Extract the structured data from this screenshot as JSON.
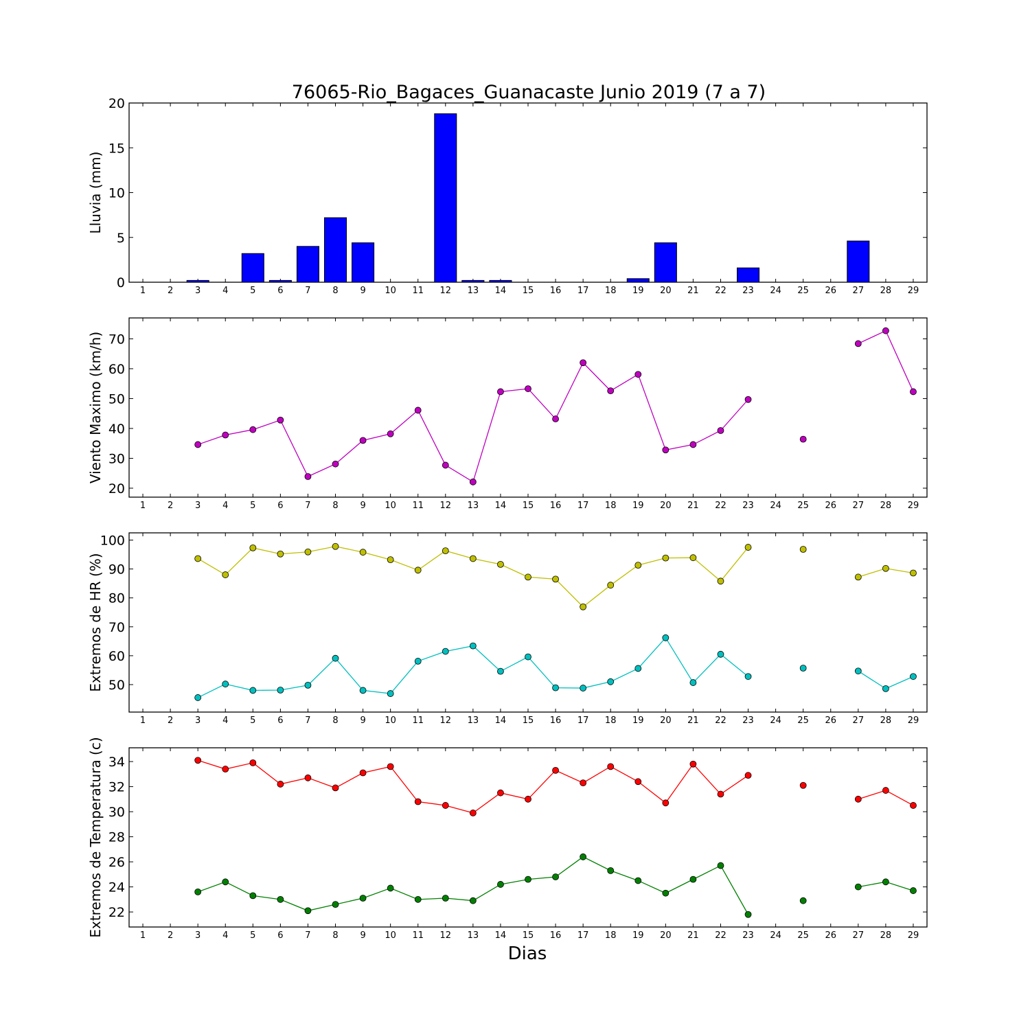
{
  "title": "76065-Rio_Bagaces_Guanacaste Junio 2019  (7 a 7)",
  "xlabel": "Dias",
  "chart_data": [
    {
      "type": "bar",
      "ylabel": "Lluvia (mm)",
      "ylim": [
        0,
        20
      ],
      "yticks": [
        0,
        5,
        10,
        15,
        20
      ],
      "x": [
        1,
        2,
        3,
        4,
        5,
        6,
        7,
        8,
        9,
        10,
        11,
        12,
        13,
        14,
        15,
        16,
        17,
        18,
        19,
        20,
        21,
        22,
        23,
        24,
        25,
        26,
        27,
        28,
        29
      ],
      "series": [
        {
          "color": "#0000ff",
          "values": [
            0,
            0,
            0.2,
            0,
            3.2,
            0.2,
            4.0,
            7.2,
            4.4,
            0,
            0,
            18.8,
            0.2,
            0.2,
            0,
            0,
            0,
            0,
            0.4,
            4.4,
            0,
            0,
            1.6,
            0,
            0,
            0,
            4.6,
            0,
            0
          ]
        }
      ]
    },
    {
      "type": "line",
      "ylabel": "Viento Maximo (km/h)",
      "ylim": [
        17,
        77
      ],
      "yticks": [
        20,
        30,
        40,
        50,
        60,
        70
      ],
      "x": [
        1,
        2,
        3,
        4,
        5,
        6,
        7,
        8,
        9,
        10,
        11,
        12,
        13,
        14,
        15,
        16,
        17,
        18,
        19,
        20,
        21,
        22,
        23,
        24,
        25,
        26,
        27,
        28,
        29
      ],
      "series": [
        {
          "color": "#bf00bf",
          "values": [
            null,
            null,
            34.6,
            37.8,
            39.6,
            42.8,
            23.9,
            28.1,
            36.0,
            38.2,
            46.1,
            27.7,
            22.1,
            52.3,
            53.3,
            43.2,
            62.0,
            52.6,
            58.1,
            32.8,
            34.6,
            39.3,
            49.7,
            null,
            36.4,
            null,
            68.4,
            72.7,
            52.3
          ]
        }
      ]
    },
    {
      "type": "line",
      "ylabel": "Extremos de HR (%)",
      "ylim": [
        40.5,
        102.5
      ],
      "yticks": [
        50,
        60,
        70,
        80,
        90,
        100
      ],
      "x": [
        1,
        2,
        3,
        4,
        5,
        6,
        7,
        8,
        9,
        10,
        11,
        12,
        13,
        14,
        15,
        16,
        17,
        18,
        19,
        20,
        21,
        22,
        23,
        24,
        25,
        26,
        27,
        28,
        29
      ],
      "series": [
        {
          "color": "#bfbf00",
          "values": [
            null,
            null,
            93.6,
            88.0,
            97.3,
            95.2,
            95.9,
            97.8,
            95.8,
            93.2,
            89.6,
            96.3,
            93.6,
            91.6,
            87.2,
            86.5,
            76.9,
            84.4,
            91.3,
            93.8,
            93.9,
            85.8,
            97.5,
            null,
            96.8,
            null,
            87.2,
            90.2,
            88.6
          ]
        },
        {
          "color": "#00bfbf",
          "values": [
            null,
            null,
            45.5,
            50.2,
            48.0,
            48.1,
            49.8,
            59.1,
            48.0,
            46.9,
            58.1,
            61.5,
            63.4,
            54.6,
            59.6,
            48.9,
            48.8,
            51.0,
            55.6,
            66.2,
            50.7,
            60.5,
            52.8,
            null,
            55.7,
            null,
            54.7,
            48.6,
            52.8
          ]
        }
      ]
    },
    {
      "type": "line",
      "ylabel": "Extremos de Temperatura (c)",
      "ylim": [
        20.8,
        35.1
      ],
      "yticks": [
        22,
        24,
        26,
        28,
        30,
        32,
        34
      ],
      "x": [
        1,
        2,
        3,
        4,
        5,
        6,
        7,
        8,
        9,
        10,
        11,
        12,
        13,
        14,
        15,
        16,
        17,
        18,
        19,
        20,
        21,
        22,
        23,
        24,
        25,
        26,
        27,
        28,
        29
      ],
      "series": [
        {
          "color": "#ff0000",
          "values": [
            null,
            null,
            34.1,
            33.4,
            33.9,
            32.2,
            32.7,
            31.9,
            33.1,
            33.6,
            30.8,
            30.5,
            29.9,
            31.5,
            31.0,
            33.3,
            32.3,
            33.6,
            32.4,
            30.7,
            33.8,
            31.4,
            32.9,
            null,
            32.1,
            null,
            31.0,
            31.7,
            30.5
          ]
        },
        {
          "color": "#008000",
          "values": [
            null,
            null,
            23.6,
            24.4,
            23.3,
            23.0,
            22.1,
            22.6,
            23.1,
            23.9,
            23.0,
            23.1,
            22.9,
            24.2,
            24.6,
            24.8,
            26.4,
            25.3,
            24.5,
            23.5,
            24.6,
            25.7,
            21.8,
            null,
            22.9,
            null,
            24.0,
            24.4,
            23.7
          ]
        }
      ]
    }
  ]
}
